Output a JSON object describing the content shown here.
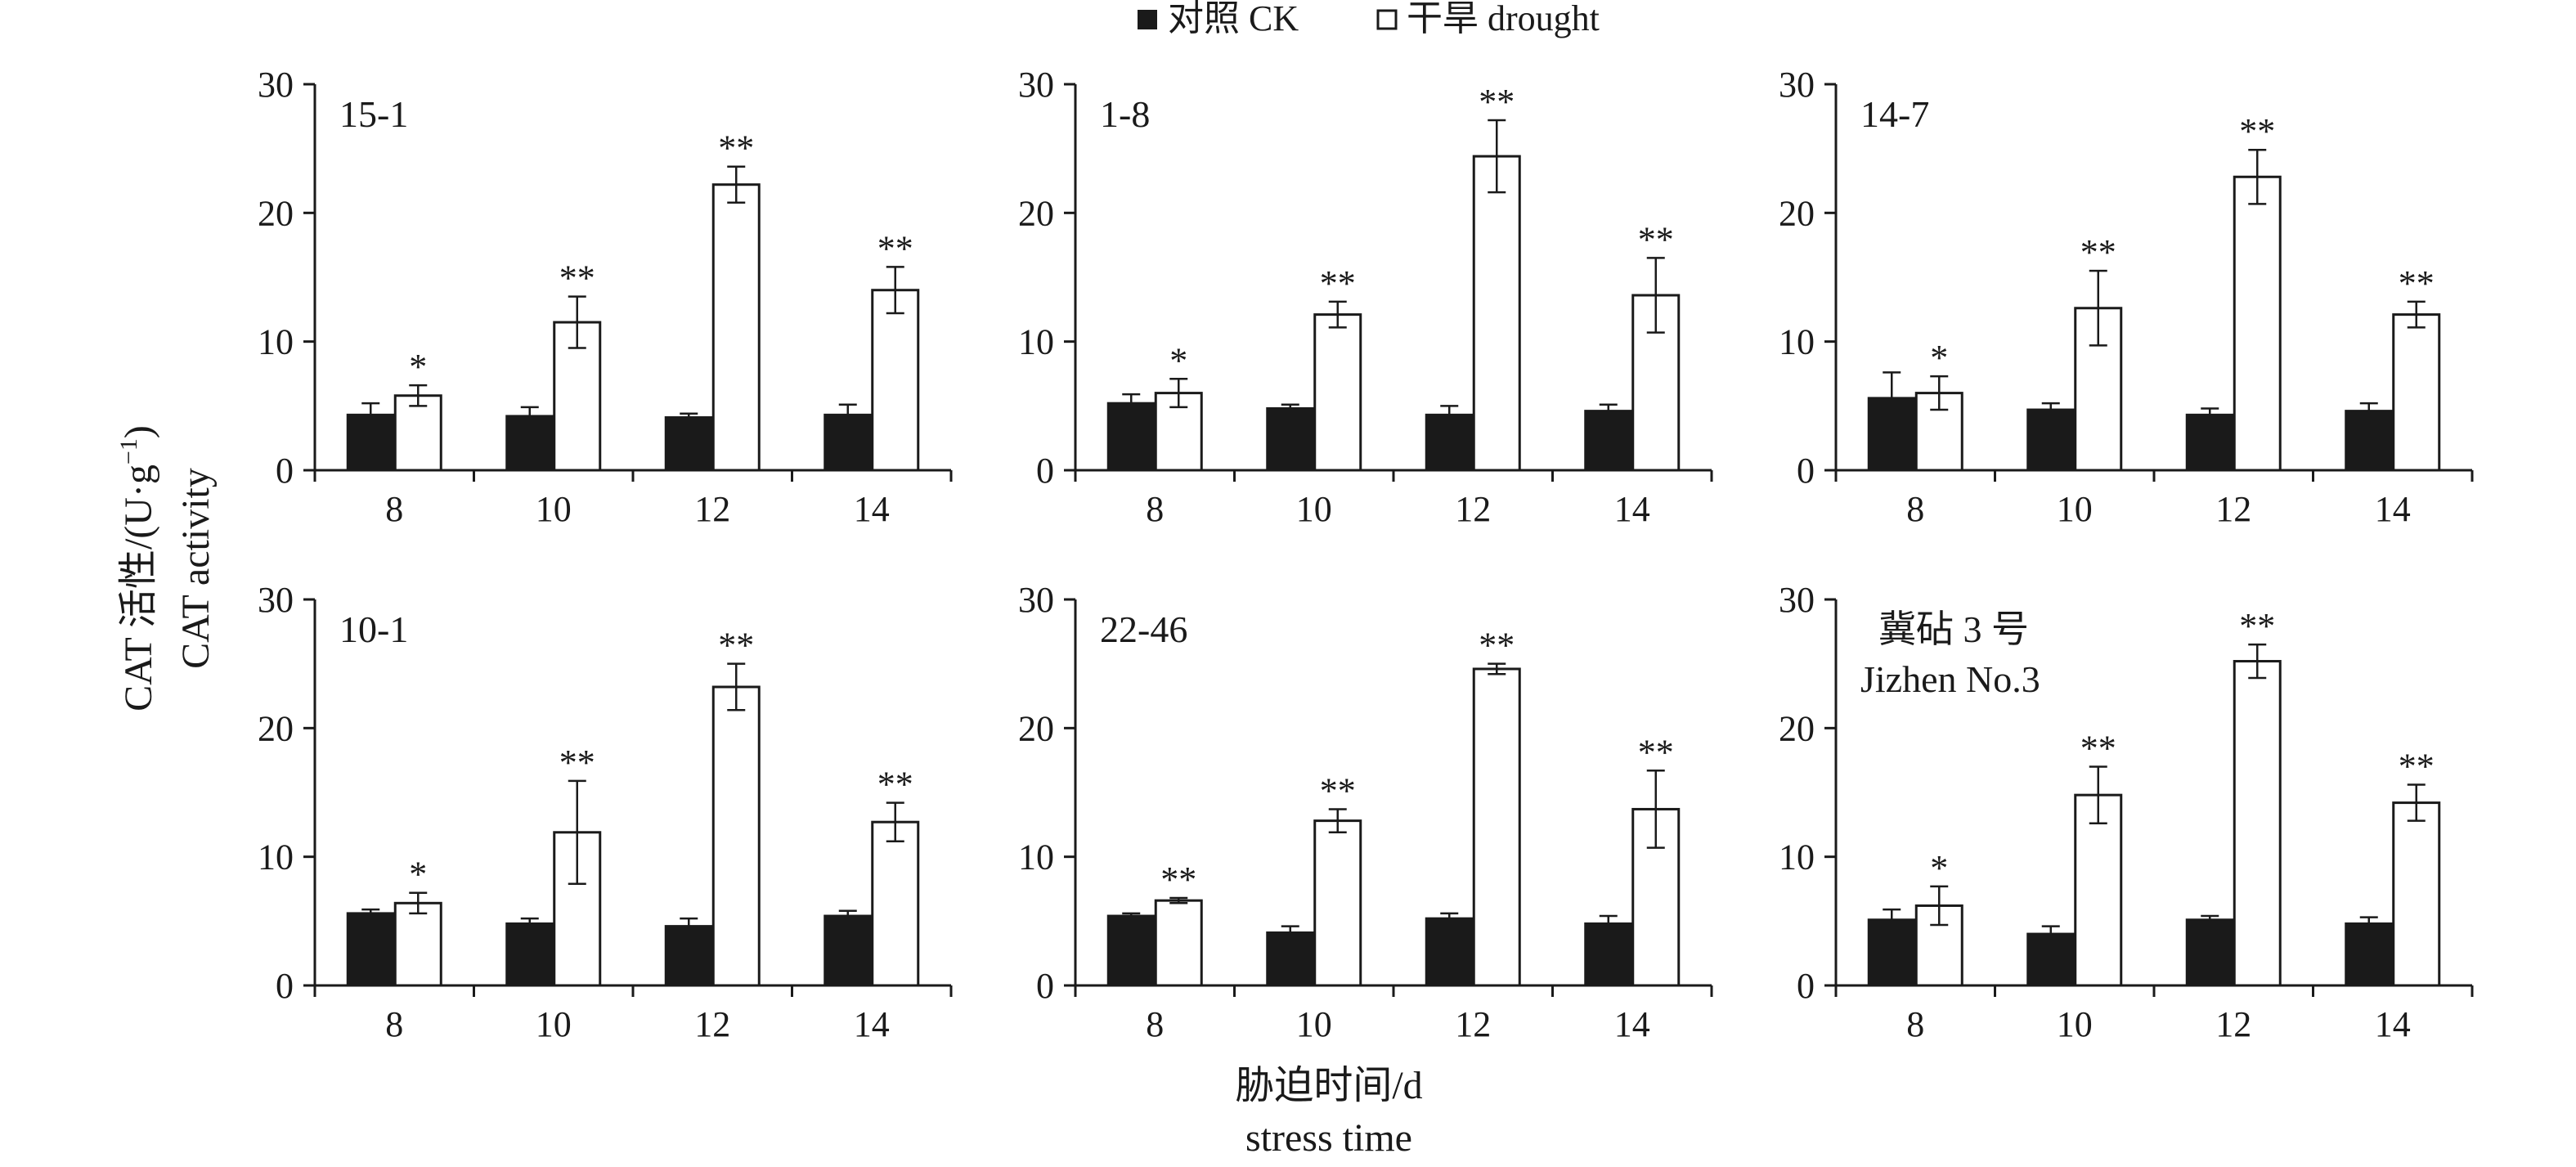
{
  "legend": {
    "items": [
      {
        "label": "对照 CK",
        "swatch": "filled"
      },
      {
        "label": "干旱 drought",
        "swatch": "open"
      }
    ]
  },
  "axes": {
    "ylabel_zh": "CAT 活性/(U·g",
    "ylabel_sup": "−1",
    "ylabel_close": ")",
    "ylabel_en": "CAT activity",
    "xlabel_zh": "胁迫时间/d",
    "xlabel_en": "stress time"
  },
  "colors": {
    "ck": "#1a1a1a",
    "drought": "#ffffff",
    "stroke": "#1a1a1a"
  },
  "chart_data": [
    {
      "type": "bar",
      "title": "15-1",
      "title2": "",
      "categories": [
        "8",
        "10",
        "12",
        "14"
      ],
      "ylim": [
        0,
        30
      ],
      "yticks": [
        0,
        10,
        20,
        30
      ],
      "series": [
        {
          "name": "对照 CK",
          "values": [
            4.3,
            4.2,
            4.1,
            4.3
          ],
          "errors": [
            0.9,
            0.7,
            0.3,
            0.8
          ]
        },
        {
          "name": "干旱 drought",
          "values": [
            5.8,
            11.5,
            22.2,
            14.0
          ],
          "errors": [
            0.8,
            2.0,
            1.4,
            1.8
          ]
        }
      ],
      "significance": [
        "*",
        "**",
        "**",
        "**"
      ]
    },
    {
      "type": "bar",
      "title": "1-8",
      "title2": "",
      "categories": [
        "8",
        "10",
        "12",
        "14"
      ],
      "ylim": [
        0,
        30
      ],
      "yticks": [
        0,
        10,
        20,
        30
      ],
      "series": [
        {
          "name": "对照 CK",
          "values": [
            5.2,
            4.8,
            4.3,
            4.6
          ],
          "errors": [
            0.7,
            0.3,
            0.7,
            0.5
          ]
        },
        {
          "name": "干旱 drought",
          "values": [
            6.0,
            12.1,
            24.4,
            13.6
          ],
          "errors": [
            1.1,
            1.0,
            2.8,
            2.9
          ]
        }
      ],
      "significance": [
        "*",
        "**",
        "**",
        "**"
      ]
    },
    {
      "type": "bar",
      "title": "14-7",
      "title2": "",
      "categories": [
        "8",
        "10",
        "12",
        "14"
      ],
      "ylim": [
        0,
        30
      ],
      "yticks": [
        0,
        10,
        20,
        30
      ],
      "series": [
        {
          "name": "对照 CK",
          "values": [
            5.6,
            4.7,
            4.3,
            4.6
          ],
          "errors": [
            2.0,
            0.5,
            0.5,
            0.6
          ]
        },
        {
          "name": "干旱 drought",
          "values": [
            6.0,
            12.6,
            22.8,
            12.1
          ],
          "errors": [
            1.3,
            2.9,
            2.1,
            1.0
          ]
        }
      ],
      "significance": [
        "*",
        "**",
        "**",
        "**"
      ]
    },
    {
      "type": "bar",
      "title": "10-1",
      "title2": "",
      "categories": [
        "8",
        "10",
        "12",
        "14"
      ],
      "ylim": [
        0,
        30
      ],
      "yticks": [
        0,
        10,
        20,
        30
      ],
      "series": [
        {
          "name": "对照 CK",
          "values": [
            5.6,
            4.8,
            4.6,
            5.4
          ],
          "errors": [
            0.3,
            0.4,
            0.6,
            0.4
          ]
        },
        {
          "name": "干旱 drought",
          "values": [
            6.4,
            11.9,
            23.2,
            12.7
          ],
          "errors": [
            0.8,
            4.0,
            1.8,
            1.5
          ]
        }
      ],
      "significance": [
        "*",
        "**",
        "**",
        "**"
      ]
    },
    {
      "type": "bar",
      "title": "22-46",
      "title2": "",
      "categories": [
        "8",
        "10",
        "12",
        "14"
      ],
      "ylim": [
        0,
        30
      ],
      "yticks": [
        0,
        10,
        20,
        30
      ],
      "series": [
        {
          "name": "对照 CK",
          "values": [
            5.4,
            4.1,
            5.2,
            4.8
          ],
          "errors": [
            0.2,
            0.5,
            0.4,
            0.6
          ]
        },
        {
          "name": "干旱 drought",
          "values": [
            6.6,
            12.8,
            24.6,
            13.7
          ],
          "errors": [
            0.2,
            0.9,
            0.4,
            3.0
          ]
        }
      ],
      "significance": [
        "**",
        "**",
        "**",
        "**"
      ]
    },
    {
      "type": "bar",
      "title": "冀砧 3 号",
      "title2": "Jizhen No.3",
      "categories": [
        "8",
        "10",
        "12",
        "14"
      ],
      "ylim": [
        0,
        30
      ],
      "yticks": [
        0,
        10,
        20,
        30
      ],
      "series": [
        {
          "name": "对照 CK",
          "values": [
            5.1,
            4.0,
            5.1,
            4.8
          ],
          "errors": [
            0.8,
            0.6,
            0.3,
            0.5
          ]
        },
        {
          "name": "干旱 drought",
          "values": [
            6.2,
            14.8,
            25.2,
            14.2
          ],
          "errors": [
            1.5,
            2.2,
            1.3,
            1.4
          ]
        }
      ],
      "significance": [
        "*",
        "**",
        "**",
        "**"
      ]
    }
  ]
}
